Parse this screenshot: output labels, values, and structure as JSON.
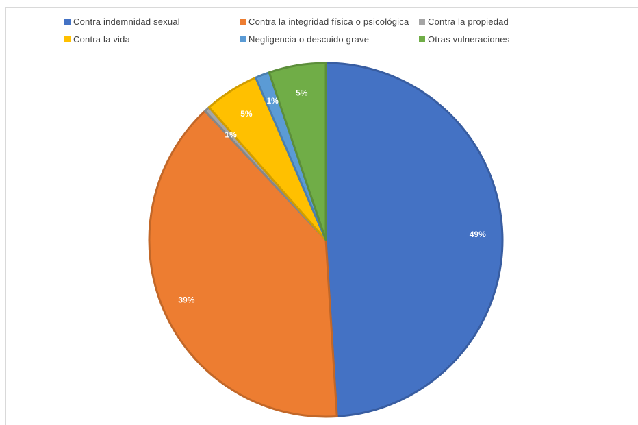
{
  "chart_data": {
    "type": "pie",
    "title": "",
    "legend_position": "top",
    "slices": [
      {
        "name": "Contra indemnidad sexual",
        "value": 49,
        "label": "49%",
        "color": "#4472C4"
      },
      {
        "name": "Contra la integridad física o psicológica",
        "value": 39,
        "label": "39%",
        "color": "#ED7D31"
      },
      {
        "name": "Contra la propiedad",
        "value": 0.5,
        "label": "1%",
        "color": "#A5A5A5"
      },
      {
        "name": "Contra la vida",
        "value": 5,
        "label": "5%",
        "color": "#FFC000"
      },
      {
        "name": "Negligencia o descuido grave",
        "value": 1.3,
        "label": "1%",
        "color": "#5B9BD5"
      },
      {
        "name": "Otras vulneraciones",
        "value": 5.2,
        "label": "5%",
        "color": "#70AD47"
      }
    ]
  }
}
